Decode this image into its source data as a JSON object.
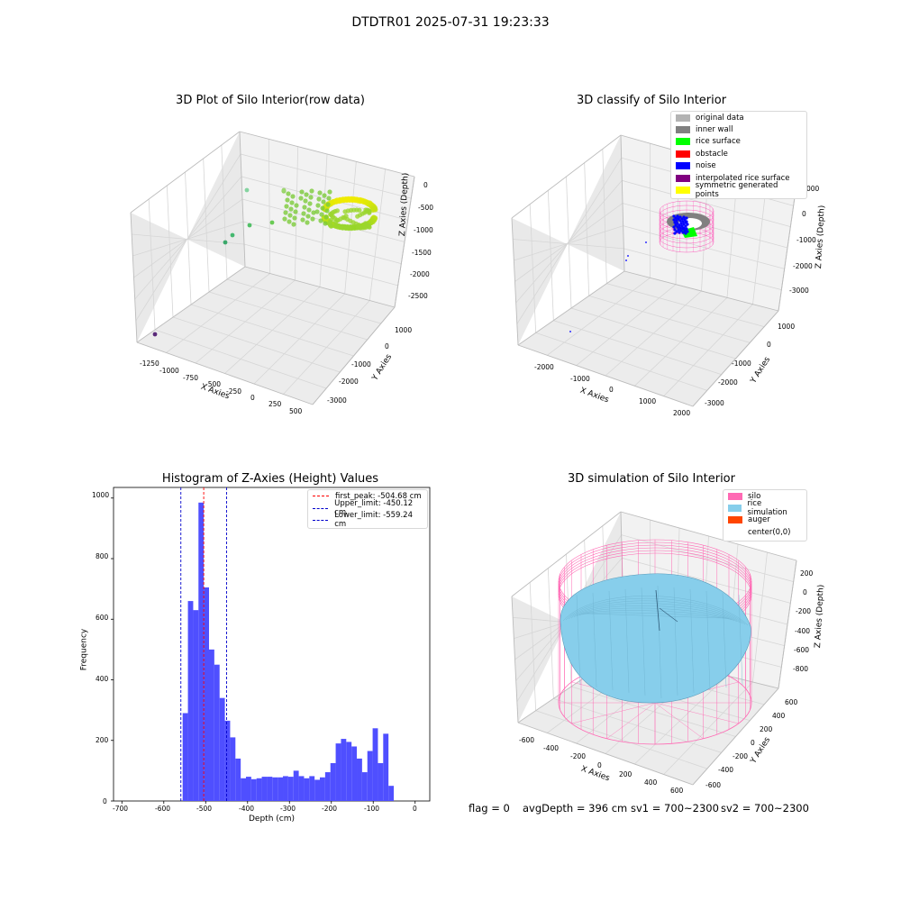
{
  "suptitle": "DTDTR01 2025-07-31 19:23:33",
  "footer": {
    "flag": "flag = 0",
    "avg_depth": "avgDepth = 396 cm",
    "sv1": "sv1 = 700~2300",
    "sv2": "sv2 = 700~2300"
  },
  "chart_data": [
    {
      "type": "scatter",
      "title": "3D Plot of Silo Interior(row data)",
      "xlabel": "X Axies",
      "ylabel": "Y Axies",
      "zlabel": "Z Axies (Depth)",
      "x_ticks": [
        "-1250",
        "-1000",
        "-750",
        "-500",
        "-250",
        "0",
        "250",
        "500"
      ],
      "y_ticks": [
        "1000",
        "0",
        "-1000",
        "-2000",
        "-3000"
      ],
      "z_ticks": [
        "0",
        "-500",
        "-1000",
        "-1500",
        "-2000",
        "-2500"
      ],
      "colormap": "viridis",
      "outliers": [
        {
          "x": -1300,
          "y": 900,
          "z": -2600
        },
        {
          "x": -1000,
          "y": 600,
          "z": -600
        },
        {
          "x": -900,
          "y": 550,
          "z": -800
        },
        {
          "x": -750,
          "y": 400,
          "z": -700
        }
      ]
    },
    {
      "type": "scatter",
      "title": "3D classify of Silo Interior",
      "xlabel": "X Axies",
      "ylabel": "Y Axies",
      "zlabel": "Z Axies (Depth)",
      "x_ticks": [
        "-2000",
        "-1000",
        "0",
        "1000",
        "2000"
      ],
      "y_ticks": [
        "1000",
        "0",
        "-1000",
        "-2000",
        "-3000"
      ],
      "z_ticks": [
        "0",
        "-1000",
        "-2000",
        "-3000"
      ],
      "z_tick_partial": "000",
      "legend": [
        {
          "label": "original data",
          "color": "#b3b3b3"
        },
        {
          "label": "inner wall",
          "color": "#808080"
        },
        {
          "label": "rice surface",
          "color": "#00ff00"
        },
        {
          "label": "obstacle",
          "color": "#ff0000"
        },
        {
          "label": "noise",
          "color": "#0000ff"
        },
        {
          "label": "interpolated rice surface",
          "color": "#800080"
        },
        {
          "label": "symmetric generated points",
          "color": "#ffff00"
        }
      ]
    },
    {
      "type": "bar",
      "title": "Histogram of Z-Axies (Height) Values",
      "xlabel": "Depth (cm)",
      "ylabel": "Frequency",
      "xlim": [
        -720,
        35
      ],
      "ylim": [
        0,
        1035
      ],
      "x_ticks": [
        "-700",
        "-600",
        "-500",
        "-400",
        "-300",
        "-200",
        "-100",
        "0"
      ],
      "y_ticks": [
        "0",
        "200",
        "400",
        "600",
        "800",
        "1000"
      ],
      "bin_start": -555,
      "bin_width": 12.6,
      "values": [
        290,
        660,
        630,
        985,
        705,
        500,
        450,
        340,
        265,
        210,
        140,
        75,
        80,
        72,
        75,
        80,
        80,
        78,
        78,
        82,
        80,
        100,
        82,
        75,
        82,
        70,
        78,
        95,
        125,
        190,
        205,
        195,
        180,
        140,
        95,
        165,
        240,
        125,
        222,
        50
      ],
      "bar_color": "#4f4fff",
      "lines": [
        {
          "label": "first_peak: -504.68 cm",
          "value": -504.68,
          "color": "#ff0000"
        },
        {
          "label": "Upper_limit: -450.12 cm",
          "value": -450.12,
          "color": "#0000cc"
        },
        {
          "label": "Lower_limit: -559.24 cm",
          "value": -559.24,
          "color": "#0000cc"
        }
      ]
    },
    {
      "type": "scatter",
      "title": "3D simulation of Silo Interior",
      "xlabel": "X Axies",
      "ylabel": "Y Axies",
      "zlabel": "Z Axies (Depth)",
      "x_ticks": [
        "-600",
        "-400",
        "-200",
        "0",
        "200",
        "400",
        "600"
      ],
      "y_ticks": [
        "600",
        "400",
        "200",
        "0",
        "-200",
        "-400",
        "-600"
      ],
      "z_ticks": [
        "200",
        "0",
        "-200",
        "-400",
        "-600",
        "-800"
      ],
      "legend": [
        {
          "label": "silo",
          "color": "#ff69b4"
        },
        {
          "label": "rice simulation",
          "color": "#87ceeb"
        },
        {
          "label": "auger",
          "color": "#ff4500"
        },
        {
          "label": "center(0,0)",
          "color": ""
        }
      ]
    }
  ]
}
